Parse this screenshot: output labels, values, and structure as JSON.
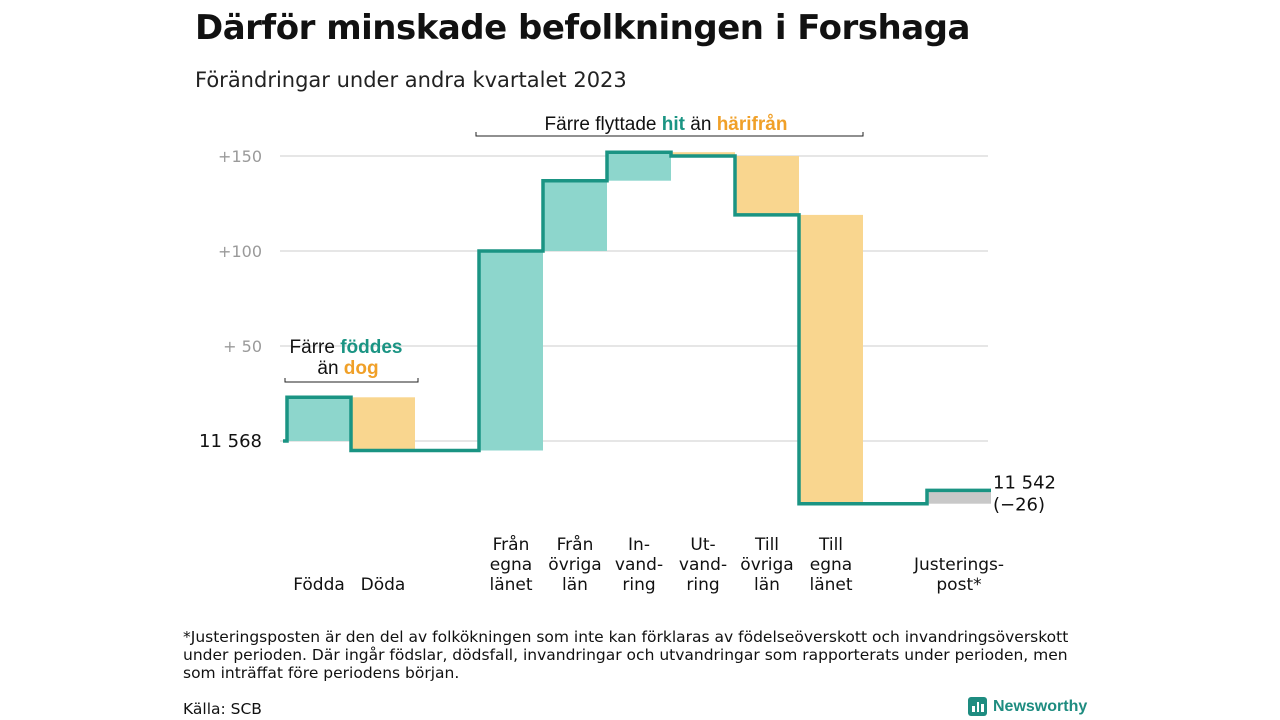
{
  "title": "Därför minskade befolkningen i Forshaga",
  "subtitle": "Förändringar under andra kvartalet 2023",
  "colors": {
    "teal": "#1a9483",
    "teal_fill": "#8dd6cc",
    "orange": "#f0a028",
    "orange_fill": "#f9d68f",
    "gray_fill": "#c8c8c8",
    "grid": "#dddddd",
    "axis_text": "#9a9a9a"
  },
  "chart_data": {
    "type": "waterfall",
    "start": {
      "value": 11568,
      "label": "11  568"
    },
    "end": {
      "label": "11 542",
      "change_label": "(−26)"
    },
    "y_ticks": [
      {
        "value": 150,
        "label": "+150"
      },
      {
        "value": 100,
        "label": "+100"
      },
      {
        "value": 50,
        "label": "+  50"
      }
    ],
    "steps": [
      {
        "label": [
          "Födda"
        ],
        "change": 23,
        "kind": "gain"
      },
      {
        "label": [
          "Döda"
        ],
        "change": -28,
        "kind": "loss"
      },
      {
        "label": [],
        "change": 0,
        "kind": "gap"
      },
      {
        "label": [
          "Från",
          "egna",
          "länet"
        ],
        "change": 105,
        "kind": "gain"
      },
      {
        "label": [
          "Från",
          "övriga",
          "län"
        ],
        "change": 37,
        "kind": "gain"
      },
      {
        "label": [
          "In-",
          "vand-",
          "ring"
        ],
        "change": 15,
        "kind": "gain"
      },
      {
        "label": [
          "Ut-",
          "vand-",
          "ring"
        ],
        "change": -2,
        "kind": "loss"
      },
      {
        "label": [
          "Till",
          "övriga",
          "län"
        ],
        "change": -31,
        "kind": "loss"
      },
      {
        "label": [
          "Till",
          "egna",
          "länet"
        ],
        "change": -152,
        "kind": "loss"
      },
      {
        "label": [],
        "change": 0,
        "kind": "gap"
      },
      {
        "label": [
          "Justerings-",
          "post*"
        ],
        "change": 7,
        "kind": "adjust"
      }
    ],
    "annotations": {
      "births": {
        "prefix": "Färre ",
        "hit": "föddes",
        "line2_prefix": "än ",
        "away": "dog"
      },
      "moves": {
        "prefix": "Färre flyttade ",
        "hit": "hit",
        "mid": " än ",
        "away": "härifrån"
      }
    }
  },
  "footnote": "*Justeringsposten är den del av folkökningen som inte kan förklaras av födelseöverskott och invandringsöverskott under perioden. Där ingår födslar, dödsfall, invandringar och utvandringar som rapporterats under perioden, men som inträffat före periodens början.",
  "source": "Källa: SCB",
  "brand": "Newsworthy"
}
